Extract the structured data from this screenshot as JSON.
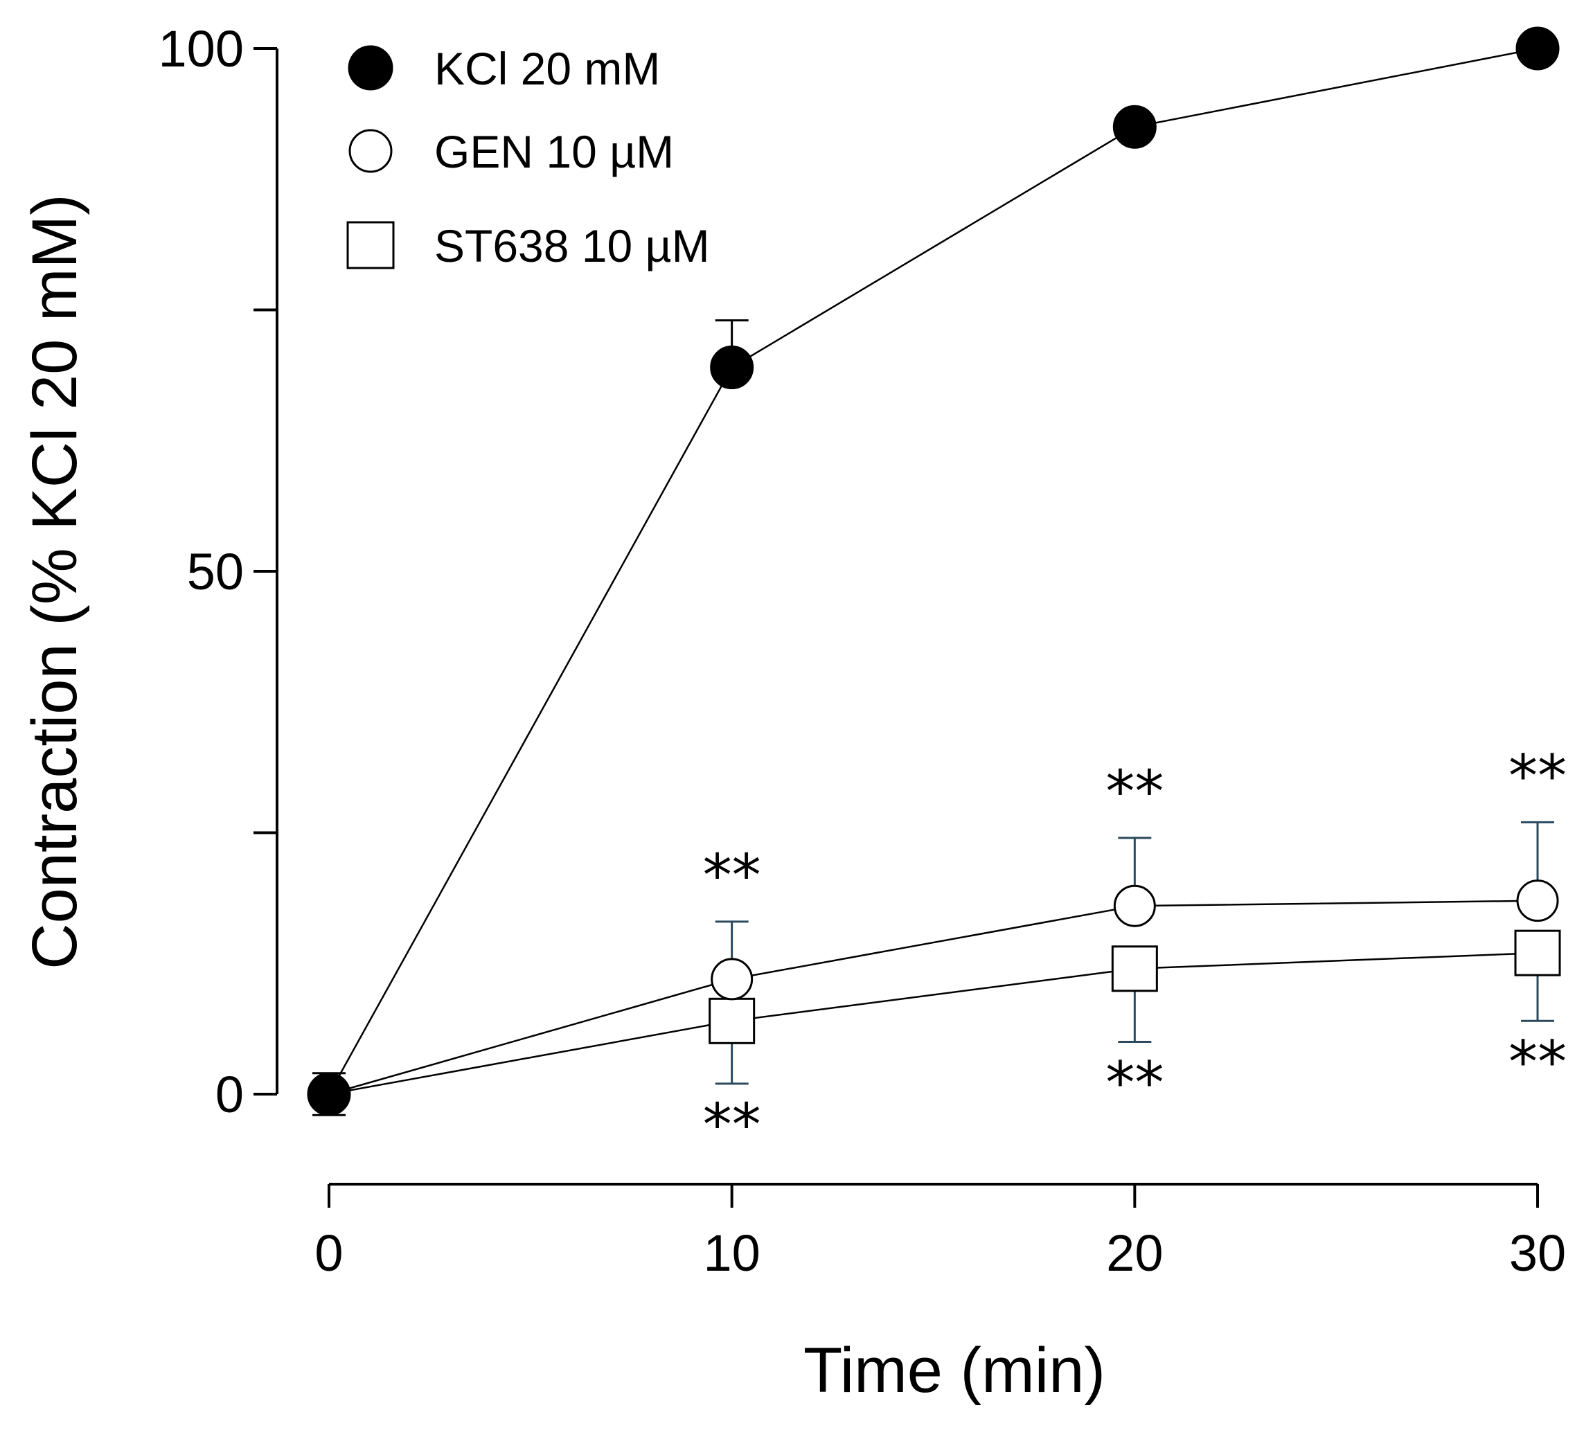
{
  "chart_data": {
    "type": "line",
    "title": "",
    "xlabel": "Time (min)",
    "ylabel": "Contraction (% KCl 20 mM)",
    "x": [
      0,
      10,
      20,
      30
    ],
    "xlim": [
      0,
      30
    ],
    "ylim": [
      0,
      100
    ],
    "x_ticks": [
      0,
      10,
      20,
      30
    ],
    "x_tick_labels": [
      "0",
      "10",
      "20",
      "30"
    ],
    "y_ticks": [
      0,
      25,
      50,
      75,
      100
    ],
    "y_tick_labels": [
      "0",
      "",
      "50",
      "",
      "100"
    ],
    "grid": false,
    "legend_position": "top-left",
    "series": [
      {
        "name": "KCl 20 mM",
        "marker": "filled-circle",
        "values": [
          0,
          69.5,
          92.5,
          100
        ],
        "error_up": [
          2,
          4.5,
          0,
          0
        ],
        "error_down": [
          2,
          0,
          0,
          0
        ]
      },
      {
        "name": "GEN 10 µM",
        "marker": "open-circle",
        "values": [
          0,
          11,
          18,
          18.5
        ],
        "error_up": [
          0,
          5.5,
          6.5,
          7.5
        ],
        "error_down": [
          0,
          0,
          0,
          0
        ],
        "annotations": [
          "",
          "**",
          "**",
          "**"
        ]
      },
      {
        "name": "ST638 10 µM",
        "marker": "open-square",
        "values": [
          0,
          7,
          12,
          13.5
        ],
        "error_up": [
          0,
          0,
          0,
          0
        ],
        "error_down": [
          0,
          6,
          7,
          6.5
        ],
        "annotations": [
          "",
          "**",
          "**",
          "**"
        ]
      }
    ]
  }
}
